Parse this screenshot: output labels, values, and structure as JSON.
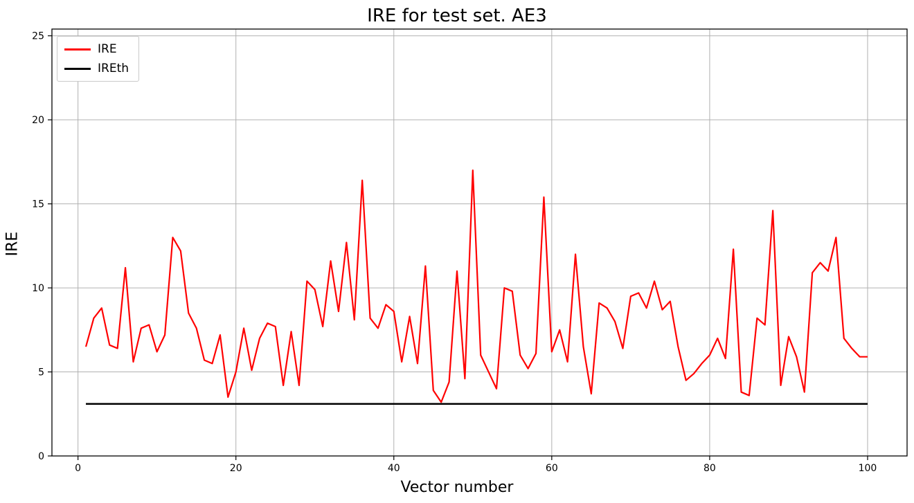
{
  "chart_data": {
    "type": "line",
    "title": "IRE for test set. AE3",
    "xlabel": "Vector number",
    "ylabel": "IRE",
    "xlim": [
      -3.3,
      105
    ],
    "ylim": [
      0,
      25.4
    ],
    "xticks": [
      0,
      20,
      40,
      60,
      80,
      100
    ],
    "yticks": [
      0,
      5,
      10,
      15,
      20,
      25
    ],
    "grid": true,
    "legend_position": "upper-left",
    "series": [
      {
        "name": "IRE",
        "color": "#ff0000",
        "x_start": 1,
        "values": [
          6.5,
          8.2,
          8.8,
          6.6,
          6.4,
          11.2,
          5.6,
          7.6,
          7.8,
          6.2,
          7.2,
          13.0,
          12.2,
          8.5,
          7.6,
          5.7,
          5.5,
          7.2,
          3.5,
          5.0,
          7.6,
          5.1,
          7.0,
          7.9,
          7.7,
          4.2,
          7.4,
          4.2,
          10.4,
          9.9,
          7.7,
          11.6,
          8.6,
          12.7,
          8.1,
          16.4,
          8.2,
          7.6,
          9.0,
          8.6,
          5.6,
          8.3,
          5.5,
          11.3,
          3.9,
          3.2,
          4.4,
          11.0,
          4.6,
          17.0,
          6.0,
          5.0,
          4.0,
          10.0,
          9.8,
          6.0,
          5.2,
          6.1,
          15.4,
          6.2,
          7.5,
          5.6,
          12.0,
          6.5,
          3.7,
          9.1,
          8.8,
          8.0,
          6.4,
          9.5,
          9.7,
          8.8,
          10.4,
          8.7,
          9.2,
          6.5,
          4.5,
          4.9,
          5.5,
          6.0,
          7.0,
          5.8,
          12.3,
          3.8,
          3.6,
          8.2,
          7.8,
          14.6,
          4.2,
          7.1,
          5.9,
          3.8,
          10.9,
          11.5,
          11.0,
          13.0,
          7.0,
          6.4,
          5.9,
          5.9
        ]
      },
      {
        "name": "IREth",
        "color": "#000000",
        "threshold": 3.1,
        "x_range": [
          1,
          100
        ]
      }
    ]
  },
  "legend": {
    "items": [
      {
        "label": "IRE",
        "color": "#ff0000"
      },
      {
        "label": "IREth",
        "color": "#000000"
      }
    ]
  },
  "layout_colors": {
    "grid": "#b0b0b0",
    "axes_border": "#000000",
    "background": "#ffffff"
  }
}
